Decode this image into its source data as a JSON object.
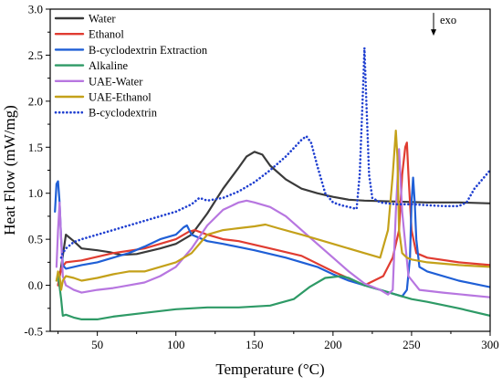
{
  "chart_data": {
    "type": "line",
    "xlabel": "Temperature (°C)",
    "ylabel": "Heat Flow (mW/mg)",
    "xlim": [
      20,
      300
    ],
    "ylim": [
      -0.5,
      3.0
    ],
    "xticks": [
      50,
      100,
      150,
      200,
      250,
      300
    ],
    "yticks": [
      -0.5,
      0.0,
      0.5,
      1.0,
      1.5,
      2.0,
      2.5,
      3.0
    ],
    "ytick_labels": [
      "-0.5",
      "0.0",
      "0.5",
      "1.0",
      "1.5",
      "2.0",
      "2.5",
      "3.0"
    ],
    "grid": false,
    "legend_position": "top-left",
    "annotation": {
      "text": "exo",
      "arrow": "down",
      "x": 264,
      "y": 2.88
    },
    "series": [
      {
        "name": "Water",
        "color": "#3a3a3a",
        "dash": "solid",
        "x": [
          25,
          27,
          30,
          35,
          40,
          50,
          58,
          65,
          75,
          90,
          100,
          110,
          120,
          130,
          140,
          145,
          150,
          155,
          160,
          170,
          180,
          190,
          200,
          210,
          220,
          240,
          260,
          280,
          300
        ],
        "y": [
          0.0,
          0.2,
          0.55,
          0.48,
          0.4,
          0.38,
          0.36,
          0.33,
          0.34,
          0.4,
          0.45,
          0.55,
          0.78,
          1.05,
          1.28,
          1.4,
          1.45,
          1.42,
          1.3,
          1.15,
          1.05,
          1.0,
          0.96,
          0.93,
          0.92,
          0.91,
          0.9,
          0.9,
          0.89
        ]
      },
      {
        "name": "Ethanol",
        "color": "#e03c31",
        "dash": "solid",
        "x": [
          25,
          27,
          30,
          35,
          40,
          60,
          80,
          100,
          108,
          112,
          120,
          130,
          140,
          160,
          180,
          200,
          220,
          232,
          238,
          242,
          244,
          246,
          247,
          248,
          250,
          253,
          260,
          280,
          300
        ],
        "y": [
          0.0,
          0.18,
          0.25,
          0.26,
          0.27,
          0.35,
          0.4,
          0.5,
          0.58,
          0.6,
          0.55,
          0.5,
          0.48,
          0.4,
          0.32,
          0.15,
          0.0,
          0.1,
          0.3,
          0.6,
          1.2,
          1.5,
          1.55,
          1.2,
          0.6,
          0.35,
          0.3,
          0.25,
          0.22
        ]
      },
      {
        "name": "B-cyclodextrin Extraction",
        "color": "#1f5fd6",
        "dash": "solid",
        "x": [
          23,
          24,
          25,
          26,
          27,
          28,
          30,
          35,
          40,
          50,
          60,
          70,
          80,
          90,
          100,
          105,
          107,
          110,
          120,
          130,
          150,
          170,
          190,
          200,
          210,
          220,
          230,
          240,
          244,
          247,
          249,
          250,
          251,
          252,
          253,
          255,
          260,
          280,
          300
        ],
        "y": [
          0.8,
          1.1,
          1.13,
          0.9,
          0.5,
          0.22,
          0.18,
          0.2,
          0.22,
          0.25,
          0.3,
          0.35,
          0.42,
          0.5,
          0.55,
          0.63,
          0.65,
          0.55,
          0.48,
          0.45,
          0.38,
          0.3,
          0.2,
          0.12,
          0.05,
          0.0,
          -0.05,
          -0.1,
          -0.12,
          -0.05,
          0.3,
          0.9,
          1.17,
          0.9,
          0.5,
          0.2,
          0.15,
          0.05,
          -0.02
        ]
      },
      {
        "name": "Alkaline",
        "color": "#2e9a66",
        "dash": "solid",
        "x": [
          24,
          25,
          27,
          28,
          30,
          35,
          40,
          50,
          60,
          80,
          100,
          120,
          140,
          160,
          175,
          185,
          195,
          205,
          210,
          220,
          230,
          240,
          250,
          260,
          280,
          300
        ],
        "y": [
          0.05,
          0.12,
          -0.15,
          -0.33,
          -0.32,
          -0.35,
          -0.37,
          -0.37,
          -0.34,
          -0.3,
          -0.26,
          -0.24,
          -0.24,
          -0.22,
          -0.15,
          -0.02,
          0.08,
          0.1,
          0.08,
          0.0,
          -0.05,
          -0.1,
          -0.15,
          -0.18,
          -0.25,
          -0.33
        ]
      },
      {
        "name": "UAE-Water",
        "color": "#b776e0",
        "dash": "solid",
        "x": [
          24,
          25,
          26,
          27,
          28,
          30,
          35,
          40,
          50,
          60,
          70,
          80,
          90,
          100,
          110,
          120,
          130,
          140,
          145,
          150,
          160,
          170,
          180,
          190,
          200,
          210,
          220,
          230,
          235,
          238,
          240,
          242,
          244,
          248,
          255,
          270,
          300
        ],
        "y": [
          0.2,
          0.6,
          0.9,
          0.5,
          0.1,
          0.0,
          -0.05,
          -0.08,
          -0.05,
          -0.03,
          0.0,
          0.03,
          0.1,
          0.2,
          0.4,
          0.65,
          0.82,
          0.9,
          0.92,
          0.9,
          0.85,
          0.75,
          0.6,
          0.45,
          0.3,
          0.15,
          0.02,
          -0.05,
          -0.1,
          -0.05,
          0.8,
          1.48,
          0.8,
          0.1,
          -0.05,
          -0.08,
          -0.13
        ]
      },
      {
        "name": "UAE-Ethanol",
        "color": "#c4a11a",
        "dash": "solid",
        "x": [
          24,
          25,
          26,
          27,
          28,
          30,
          35,
          40,
          50,
          60,
          70,
          80,
          90,
          100,
          110,
          120,
          130,
          140,
          150,
          157,
          165,
          180,
          200,
          220,
          230,
          235,
          238,
          240,
          241,
          242,
          244,
          247,
          250,
          260,
          280,
          300
        ],
        "y": [
          0.05,
          0.15,
          0.1,
          -0.05,
          0.05,
          0.1,
          0.08,
          0.05,
          0.08,
          0.12,
          0.15,
          0.15,
          0.2,
          0.25,
          0.35,
          0.55,
          0.6,
          0.62,
          0.64,
          0.66,
          0.62,
          0.55,
          0.45,
          0.35,
          0.3,
          0.6,
          1.2,
          1.68,
          1.4,
          0.6,
          0.35,
          0.3,
          0.28,
          0.25,
          0.22,
          0.2
        ]
      },
      {
        "name": "B-cyclodextrin",
        "color": "#1f3fd0",
        "dash": "dotted",
        "x": [
          27,
          28,
          30,
          35,
          40,
          50,
          60,
          70,
          80,
          90,
          100,
          110,
          115,
          120,
          130,
          140,
          150,
          160,
          170,
          180,
          183,
          186,
          190,
          195,
          200,
          205,
          210,
          215,
          217,
          219,
          220,
          221,
          223,
          225,
          230,
          240,
          250,
          260,
          270,
          280,
          285,
          290,
          295,
          300
        ],
        "y": [
          0.3,
          0.35,
          0.4,
          0.47,
          0.5,
          0.55,
          0.6,
          0.65,
          0.7,
          0.75,
          0.8,
          0.88,
          0.95,
          0.92,
          0.95,
          1.02,
          1.12,
          1.25,
          1.4,
          1.58,
          1.62,
          1.55,
          1.3,
          1.0,
          0.9,
          0.87,
          0.85,
          0.83,
          1.2,
          2.1,
          2.58,
          2.1,
          1.2,
          0.95,
          0.9,
          0.88,
          0.88,
          0.87,
          0.86,
          0.86,
          0.9,
          1.05,
          1.15,
          1.25
        ]
      }
    ]
  }
}
